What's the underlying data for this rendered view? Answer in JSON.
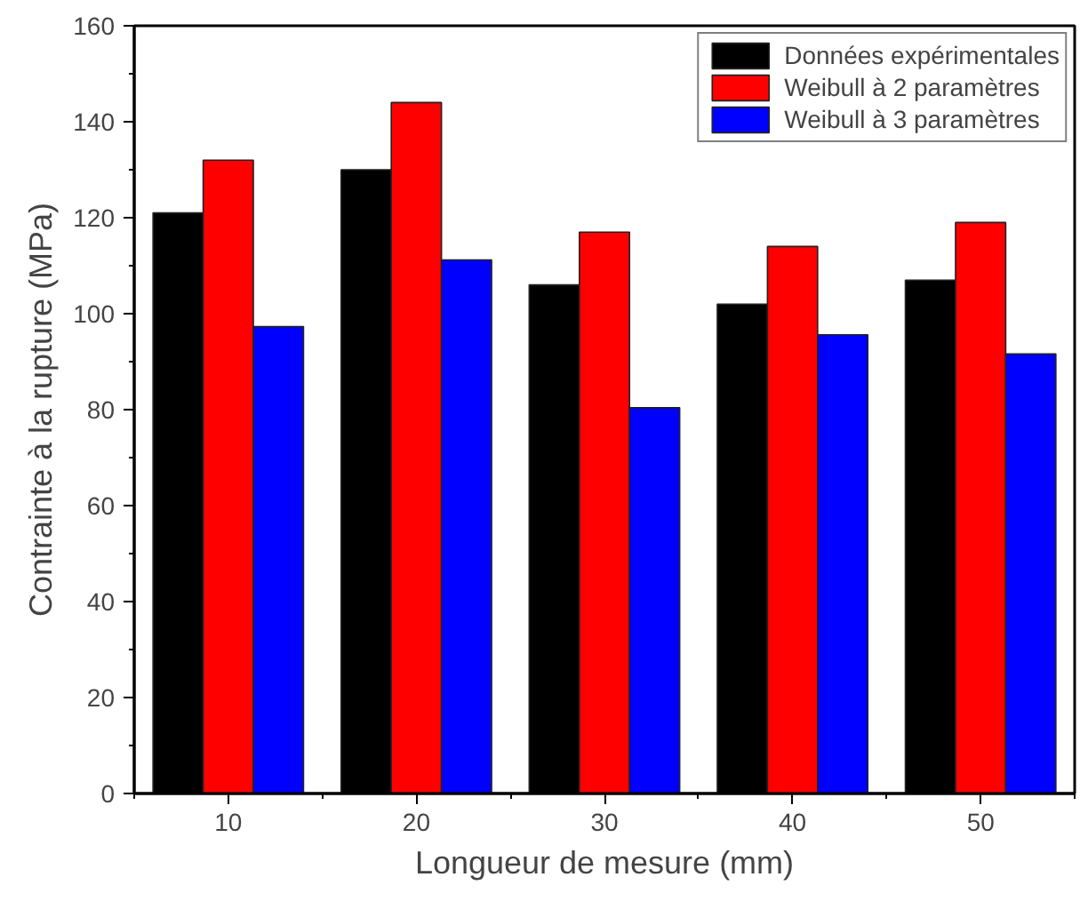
{
  "chart_data": {
    "type": "bar",
    "xlabel": "Longueur de mesure (mm)",
    "ylabel": "Contrainte à la rupture (MPa)",
    "categories": [
      "10",
      "20",
      "30",
      "40",
      "50"
    ],
    "series": [
      {
        "name": "Données expérimentales",
        "color": "#000000",
        "values": [
          121,
          130,
          106,
          102,
          107
        ]
      },
      {
        "name": "Weibull à 2 paramètres",
        "color": "#ff0000",
        "values": [
          132,
          144,
          117,
          114,
          119
        ]
      },
      {
        "name": "Weibull à 3 paramètres",
        "color": "#0000ff",
        "values": [
          97.3,
          111.2,
          80.4,
          95.6,
          91.6
        ]
      }
    ],
    "ylim": [
      0,
      160
    ],
    "yticks": [
      0,
      20,
      40,
      60,
      80,
      100,
      120,
      140,
      160
    ],
    "grid": false,
    "legend": "top right"
  }
}
